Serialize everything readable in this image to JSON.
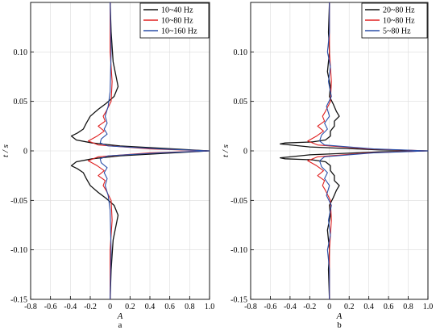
{
  "colors": {
    "black": "#111111",
    "red": "#e02020",
    "blue": "#2a4fa8",
    "grid": "#dcdcdc"
  },
  "chart_data": [
    {
      "type": "line",
      "panel_label": "a",
      "xlabel": "A",
      "ylabel": "t / s",
      "xlim": [
        -0.8,
        1.0
      ],
      "ylim": [
        -0.15,
        0.15
      ],
      "x_ticks": [
        "-0.8",
        "-0.6",
        "-0.4",
        "-0.2",
        "0",
        "0.2",
        "0.4",
        "0.6",
        "0.8",
        "1.0"
      ],
      "y_ticks": [
        "-0.15",
        "-0.10",
        "-0.05",
        "0",
        "0.05",
        "0.10"
      ],
      "grid": true,
      "legend": "top-right",
      "series": [
        {
          "name": "10~40 Hz",
          "color": "black",
          "points": [
            [
              0.0,
              -0.15
            ],
            [
              0.01,
              -0.12
            ],
            [
              0.03,
              -0.09
            ],
            [
              0.06,
              -0.075
            ],
            [
              0.08,
              -0.065
            ],
            [
              0.04,
              -0.055
            ],
            [
              -0.04,
              -0.048
            ],
            [
              -0.12,
              -0.042
            ],
            [
              -0.2,
              -0.035
            ],
            [
              -0.24,
              -0.028
            ],
            [
              -0.27,
              -0.022
            ],
            [
              -0.33,
              -0.018
            ],
            [
              -0.39,
              -0.015
            ],
            [
              -0.34,
              -0.011
            ],
            [
              -0.18,
              -0.008
            ],
            [
              0.1,
              -0.005
            ],
            [
              0.45,
              -0.003
            ],
            [
              1.0,
              0.0
            ],
            [
              0.45,
              0.003
            ],
            [
              0.1,
              0.005
            ],
            [
              -0.18,
              0.008
            ],
            [
              -0.34,
              0.011
            ],
            [
              -0.39,
              0.015
            ],
            [
              -0.33,
              0.018
            ],
            [
              -0.27,
              0.022
            ],
            [
              -0.24,
              0.028
            ],
            [
              -0.2,
              0.035
            ],
            [
              -0.12,
              0.042
            ],
            [
              -0.04,
              0.048
            ],
            [
              0.04,
              0.055
            ],
            [
              0.08,
              0.065
            ],
            [
              0.06,
              0.075
            ],
            [
              0.03,
              0.09
            ],
            [
              0.01,
              0.12
            ],
            [
              0.0,
              0.15
            ]
          ]
        },
        {
          "name": "10~80 Hz",
          "color": "red",
          "points": [
            [
              0.0,
              -0.15
            ],
            [
              0.0,
              -0.1
            ],
            [
              0.02,
              -0.07
            ],
            [
              0.01,
              -0.05
            ],
            [
              -0.04,
              -0.04
            ],
            [
              -0.07,
              -0.035
            ],
            [
              -0.05,
              -0.03
            ],
            [
              -0.12,
              -0.025
            ],
            [
              -0.06,
              -0.02
            ],
            [
              -0.13,
              -0.015
            ],
            [
              -0.22,
              -0.01
            ],
            [
              -0.12,
              -0.006
            ],
            [
              0.4,
              -0.002
            ],
            [
              1.0,
              0.0
            ],
            [
              0.4,
              0.002
            ],
            [
              -0.12,
              0.006
            ],
            [
              -0.22,
              0.01
            ],
            [
              -0.13,
              0.015
            ],
            [
              -0.06,
              0.02
            ],
            [
              -0.12,
              0.025
            ],
            [
              -0.05,
              0.03
            ],
            [
              -0.07,
              0.035
            ],
            [
              -0.04,
              0.04
            ],
            [
              0.01,
              0.05
            ],
            [
              0.02,
              0.07
            ],
            [
              0.0,
              0.1
            ],
            [
              0.0,
              0.15
            ]
          ]
        },
        {
          "name": "10~160 Hz",
          "color": "blue",
          "points": [
            [
              0.0,
              -0.15
            ],
            [
              0.01,
              -0.1
            ],
            [
              0.0,
              -0.06
            ],
            [
              -0.02,
              -0.045
            ],
            [
              -0.05,
              -0.035
            ],
            [
              -0.03,
              -0.028
            ],
            [
              -0.06,
              -0.022
            ],
            [
              -0.03,
              -0.017
            ],
            [
              -0.09,
              -0.012
            ],
            [
              -0.1,
              -0.008
            ],
            [
              -0.02,
              -0.005
            ],
            [
              0.5,
              -0.002
            ],
            [
              1.0,
              0.0
            ],
            [
              0.5,
              0.002
            ],
            [
              -0.02,
              0.005
            ],
            [
              -0.1,
              0.008
            ],
            [
              -0.09,
              0.012
            ],
            [
              -0.03,
              0.017
            ],
            [
              -0.06,
              0.022
            ],
            [
              -0.03,
              0.028
            ],
            [
              -0.05,
              0.035
            ],
            [
              -0.02,
              0.045
            ],
            [
              0.0,
              0.06
            ],
            [
              0.01,
              0.1
            ],
            [
              0.0,
              0.15
            ]
          ]
        }
      ]
    },
    {
      "type": "line",
      "panel_label": "b",
      "xlabel": "A",
      "ylabel": "t / s",
      "xlim": [
        -0.8,
        1.0
      ],
      "ylim": [
        -0.15,
        0.15
      ],
      "x_ticks": [
        "-0.8",
        "-0.6",
        "-0.4",
        "-0.2",
        "0",
        "0.2",
        "0.4",
        "0.6",
        "0.8",
        "1.0"
      ],
      "y_ticks": [
        "-0.15",
        "-0.10",
        "-0.05",
        "0",
        "0.05",
        "0.10"
      ],
      "grid": true,
      "legend": "top-right",
      "series": [
        {
          "name": "20~80 Hz",
          "color": "black",
          "points": [
            [
              0.0,
              -0.15
            ],
            [
              -0.01,
              -0.12
            ],
            [
              0.0,
              -0.1
            ],
            [
              -0.02,
              -0.08
            ],
            [
              0.01,
              -0.065
            ],
            [
              0.0,
              -0.055
            ],
            [
              0.04,
              -0.047
            ],
            [
              0.07,
              -0.04
            ],
            [
              0.1,
              -0.035
            ],
            [
              0.05,
              -0.03
            ],
            [
              0.05,
              -0.025
            ],
            [
              0.01,
              -0.02
            ],
            [
              0.01,
              -0.015
            ],
            [
              -0.04,
              -0.011
            ],
            [
              -0.18,
              -0.009
            ],
            [
              -0.45,
              -0.008
            ],
            [
              -0.5,
              -0.007
            ],
            [
              -0.2,
              -0.004
            ],
            [
              0.5,
              -0.001
            ],
            [
              1.0,
              0.0
            ],
            [
              0.5,
              0.001
            ],
            [
              -0.2,
              0.004
            ],
            [
              -0.5,
              0.007
            ],
            [
              -0.45,
              0.008
            ],
            [
              -0.18,
              0.009
            ],
            [
              -0.04,
              0.011
            ],
            [
              0.01,
              0.015
            ],
            [
              0.01,
              0.02
            ],
            [
              0.05,
              0.025
            ],
            [
              0.05,
              0.03
            ],
            [
              0.1,
              0.035
            ],
            [
              0.07,
              0.04
            ],
            [
              0.04,
              0.047
            ],
            [
              0.0,
              0.055
            ],
            [
              0.01,
              0.065
            ],
            [
              -0.02,
              0.08
            ],
            [
              0.0,
              0.1
            ],
            [
              -0.01,
              0.12
            ],
            [
              0.0,
              0.15
            ]
          ]
        },
        {
          "name": "10~80 Hz",
          "color": "red",
          "points": [
            [
              0.0,
              -0.15
            ],
            [
              0.0,
              -0.1
            ],
            [
              0.02,
              -0.07
            ],
            [
              0.01,
              -0.05
            ],
            [
              -0.04,
              -0.04
            ],
            [
              -0.07,
              -0.035
            ],
            [
              -0.05,
              -0.03
            ],
            [
              -0.12,
              -0.025
            ],
            [
              -0.06,
              -0.02
            ],
            [
              -0.13,
              -0.015
            ],
            [
              -0.22,
              -0.01
            ],
            [
              -0.12,
              -0.006
            ],
            [
              0.4,
              -0.002
            ],
            [
              1.0,
              0.0
            ],
            [
              0.4,
              0.002
            ],
            [
              -0.12,
              0.006
            ],
            [
              -0.22,
              0.01
            ],
            [
              -0.13,
              0.015
            ],
            [
              -0.06,
              0.02
            ],
            [
              -0.12,
              0.025
            ],
            [
              -0.05,
              0.03
            ],
            [
              -0.07,
              0.035
            ],
            [
              -0.04,
              0.04
            ],
            [
              0.01,
              0.05
            ],
            [
              0.02,
              0.07
            ],
            [
              0.0,
              0.1
            ],
            [
              0.0,
              0.15
            ]
          ]
        },
        {
          "name": "5~80 Hz",
          "color": "blue",
          "points": [
            [
              0.0,
              -0.15
            ],
            [
              0.0,
              -0.12
            ],
            [
              -0.02,
              -0.1
            ],
            [
              0.01,
              -0.085
            ],
            [
              -0.01,
              -0.07
            ],
            [
              0.02,
              -0.055
            ],
            [
              -0.03,
              -0.045
            ],
            [
              0.0,
              -0.035
            ],
            [
              -0.05,
              -0.028
            ],
            [
              -0.02,
              -0.022
            ],
            [
              -0.08,
              -0.016
            ],
            [
              -0.1,
              -0.01
            ],
            [
              -0.05,
              -0.006
            ],
            [
              0.45,
              -0.002
            ],
            [
              1.0,
              0.0
            ],
            [
              0.45,
              0.002
            ],
            [
              -0.05,
              0.006
            ],
            [
              -0.1,
              0.01
            ],
            [
              -0.08,
              0.016
            ],
            [
              -0.02,
              0.022
            ],
            [
              -0.05,
              0.028
            ],
            [
              0.0,
              0.035
            ],
            [
              -0.03,
              0.045
            ],
            [
              0.02,
              0.055
            ],
            [
              -0.01,
              0.07
            ],
            [
              0.01,
              0.085
            ],
            [
              -0.02,
              0.1
            ],
            [
              0.0,
              0.12
            ],
            [
              0.0,
              0.15
            ]
          ]
        }
      ]
    }
  ]
}
